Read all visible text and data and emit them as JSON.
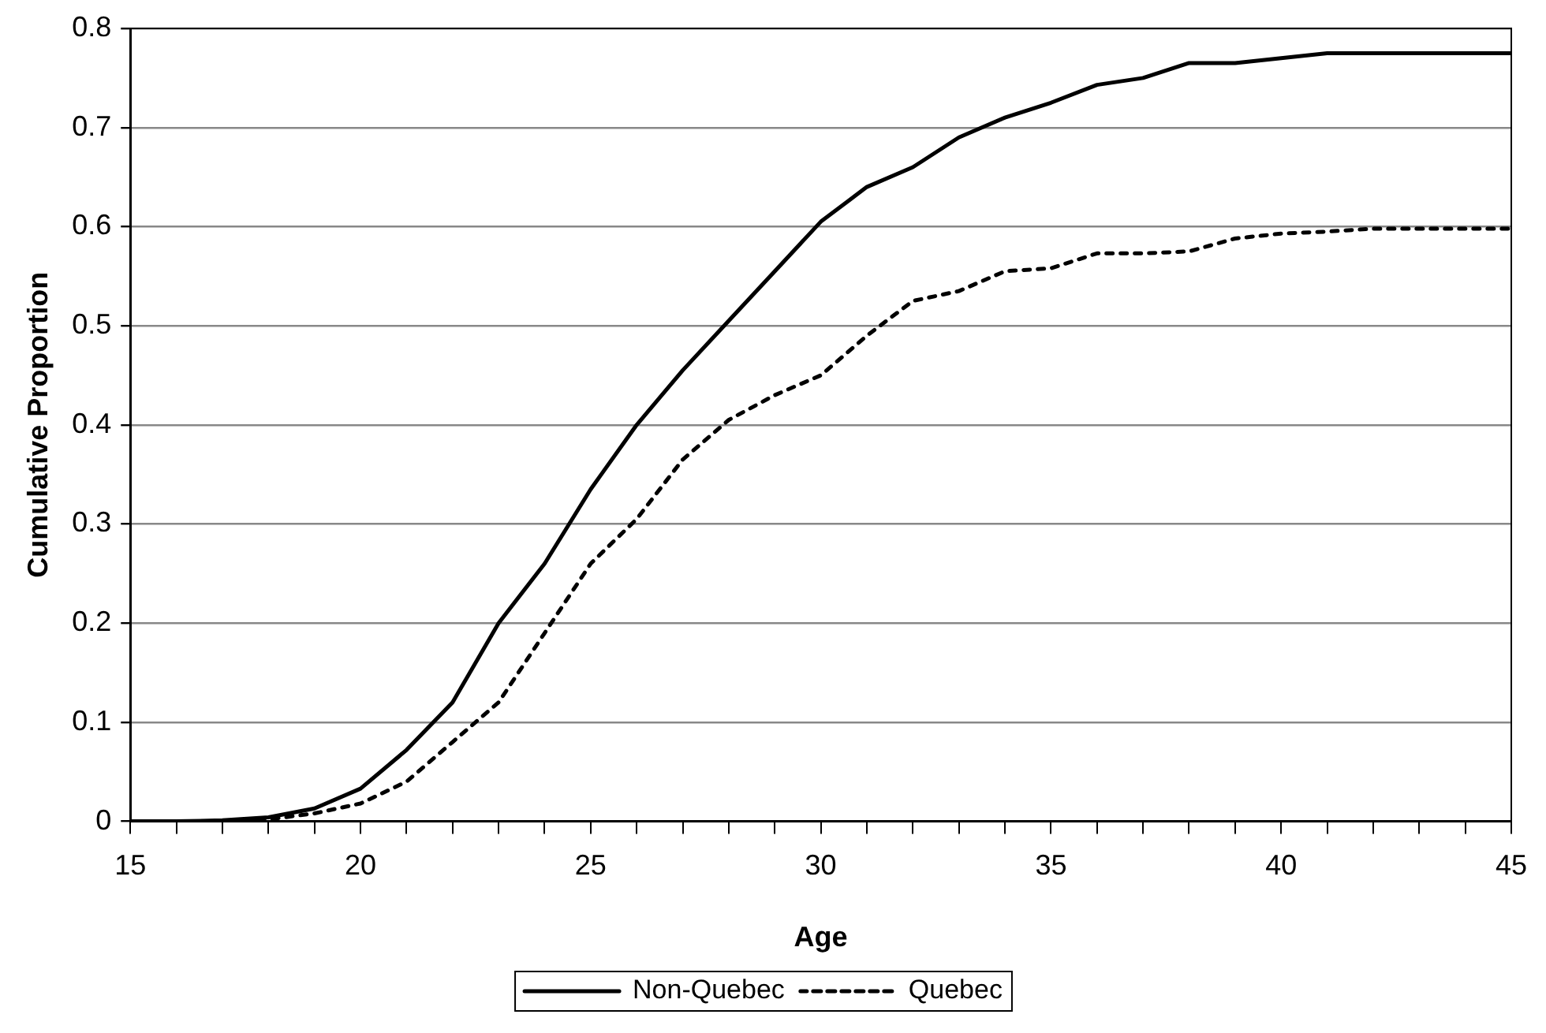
{
  "chart_data": {
    "type": "line",
    "xlabel": "Age",
    "ylabel": "Cumulative Proportion",
    "x": [
      15,
      16,
      17,
      18,
      19,
      20,
      21,
      22,
      23,
      24,
      25,
      26,
      27,
      28,
      29,
      30,
      31,
      32,
      33,
      34,
      35,
      36,
      37,
      38,
      39,
      40,
      41,
      42,
      43,
      44,
      45
    ],
    "series": [
      {
        "name": "Non-Quebec",
        "color": "#000000",
        "line_style": "solid",
        "values": [
          0,
          0,
          0.001,
          0.004,
          0.013,
          0.033,
          0.072,
          0.12,
          0.2,
          0.26,
          0.335,
          0.4,
          0.455,
          0.505,
          0.555,
          0.605,
          0.64,
          0.66,
          0.69,
          0.71,
          0.725,
          0.743,
          0.75,
          0.765,
          0.765,
          0.77,
          0.775,
          0.775,
          0.775,
          0.775,
          0.775
        ]
      },
      {
        "name": "Quebec",
        "color": "#000000",
        "line_style": "dotted",
        "values": [
          0,
          0,
          0,
          0.002,
          0.008,
          0.018,
          0.04,
          0.08,
          0.12,
          0.19,
          0.26,
          0.305,
          0.365,
          0.405,
          0.43,
          0.45,
          0.49,
          0.525,
          0.535,
          0.555,
          0.558,
          0.573,
          0.573,
          0.575,
          0.588,
          0.593,
          0.595,
          0.598,
          0.598,
          0.598,
          0.598
        ]
      }
    ],
    "xlim": [
      15,
      45
    ],
    "xticks": [
      15,
      {
        "value": 16,
        "label": null
      },
      {
        "value": 17,
        "label": null
      },
      {
        "value": 18,
        "label": null
      },
      {
        "value": 19,
        "label": null
      },
      20,
      {
        "value": 21,
        "label": null
      },
      {
        "value": 22,
        "label": null
      },
      {
        "value": 23,
        "label": null
      },
      {
        "value": 24,
        "label": null
      },
      25,
      {
        "value": 26,
        "label": null
      },
      {
        "value": 27,
        "label": null
      },
      {
        "value": 28,
        "label": null
      },
      {
        "value": 29,
        "label": null
      },
      30,
      {
        "value": 31,
        "label": null
      },
      {
        "value": 32,
        "label": null
      },
      {
        "value": 33,
        "label": null
      },
      {
        "value": 34,
        "label": null
      },
      35,
      {
        "value": 36,
        "label": null
      },
      {
        "value": 37,
        "label": null
      },
      {
        "value": 38,
        "label": null
      },
      {
        "value": 39,
        "label": null
      },
      40,
      {
        "value": 41,
        "label": null
      },
      {
        "value": 42,
        "label": null
      },
      {
        "value": 43,
        "label": null
      },
      {
        "value": 44,
        "label": null
      },
      45
    ],
    "ylim": [
      0,
      0.8
    ],
    "yticks": [
      0,
      0.1,
      0.2,
      0.3,
      0.4,
      0.5,
      0.6,
      0.7,
      0.8
    ],
    "grid": "y",
    "legend": "bottom",
    "marker": "none"
  }
}
